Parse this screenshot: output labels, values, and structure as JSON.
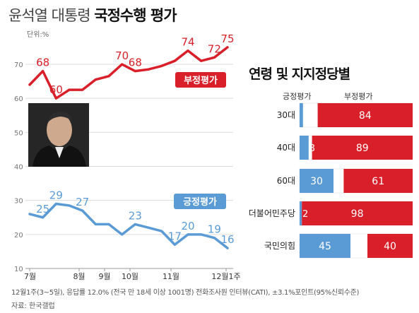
{
  "title": {
    "light": "윤석열 대통령",
    "bold": "국정수행 평가"
  },
  "unit": "단위:%",
  "colors": {
    "negative": "#d9202a",
    "positive": "#5b9bd5",
    "grid": "#dcdcdc"
  },
  "chart_data": [
    {
      "type": "line",
      "ylim": [
        10,
        70
      ],
      "yticks": [
        "70",
        "60",
        "50",
        "40",
        "30",
        "20",
        "10"
      ],
      "xticks": [
        "7월",
        "8월",
        "9월",
        "10월",
        "11월",
        "12월1주"
      ],
      "series": [
        {
          "name": "부정평가",
          "values": [
            64,
            68,
            60,
            62.5,
            62.5,
            65.5,
            66.5,
            70,
            68,
            68.5,
            69.5,
            71,
            74,
            71,
            72,
            75
          ],
          "point_labels": [
            null,
            "68",
            "60",
            null,
            null,
            null,
            null,
            "70",
            "68",
            null,
            null,
            null,
            "74",
            null,
            "72",
            "75"
          ]
        },
        {
          "name": "긍정평가",
          "values": [
            26,
            25,
            29,
            28.5,
            27,
            23,
            23,
            20,
            23,
            22,
            21,
            17,
            20,
            20,
            19,
            16
          ],
          "point_labels": [
            null,
            "25",
            "29",
            null,
            "27",
            null,
            null,
            null,
            "23",
            null,
            null,
            "17",
            "20",
            null,
            "19",
            "16"
          ]
        }
      ]
    },
    {
      "type": "bar",
      "title": "연령 및 지지정당별",
      "column_headers": [
        "긍정평가",
        "부정평가"
      ],
      "categories": [
        "30대",
        "40대",
        "60대",
        "더불어민주당",
        "국민의힘"
      ],
      "series": [
        {
          "name": "긍정평가",
          "values": [
            3,
            8,
            30,
            2,
            45
          ]
        },
        {
          "name": "부정평가",
          "values": [
            84,
            89,
            61,
            98,
            40
          ]
        }
      ]
    }
  ],
  "footnote": "12월1주(3~5일), 응답률 12.0% (전국 만 18세 이상 1001명) 전화조사원 인터뷰(CATI), ±3.1%포인트(95%신뢰수준)",
  "source": "자료: 한국갤럽"
}
